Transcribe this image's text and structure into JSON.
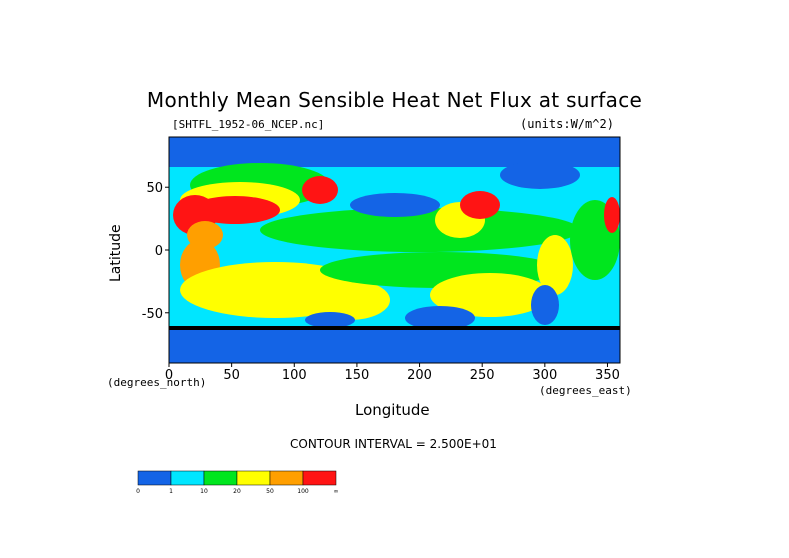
{
  "chart_data": {
    "type": "heatmap",
    "title": "Monthly Mean Sensible Heat Net Flux at surface",
    "subtitle_left": "[SHTFL_1952-06_NCEP.nc]",
    "subtitle_right": "(units:W/m^2)",
    "xlabel": "Longitude",
    "ylabel": "Latitude",
    "x_units": "(degrees_east)",
    "y_units": "(degrees_north)",
    "xlim": [
      0,
      360
    ],
    "ylim": [
      -90,
      90
    ],
    "xticks": [
      0,
      50,
      100,
      150,
      200,
      250,
      300,
      350
    ],
    "yticks": [
      50,
      0,
      -50
    ],
    "contour_interval_text": "CONTOUR INTERVAL = 2.500E+01",
    "colorbar": {
      "labels": [
        "0",
        "1",
        "10",
        "20",
        "50",
        "100",
        "∞"
      ],
      "colors": [
        "#1464e6",
        "#00e6ff",
        "#00e61e",
        "#ffff00",
        "#ff9f00",
        "#ff1414"
      ]
    }
  }
}
